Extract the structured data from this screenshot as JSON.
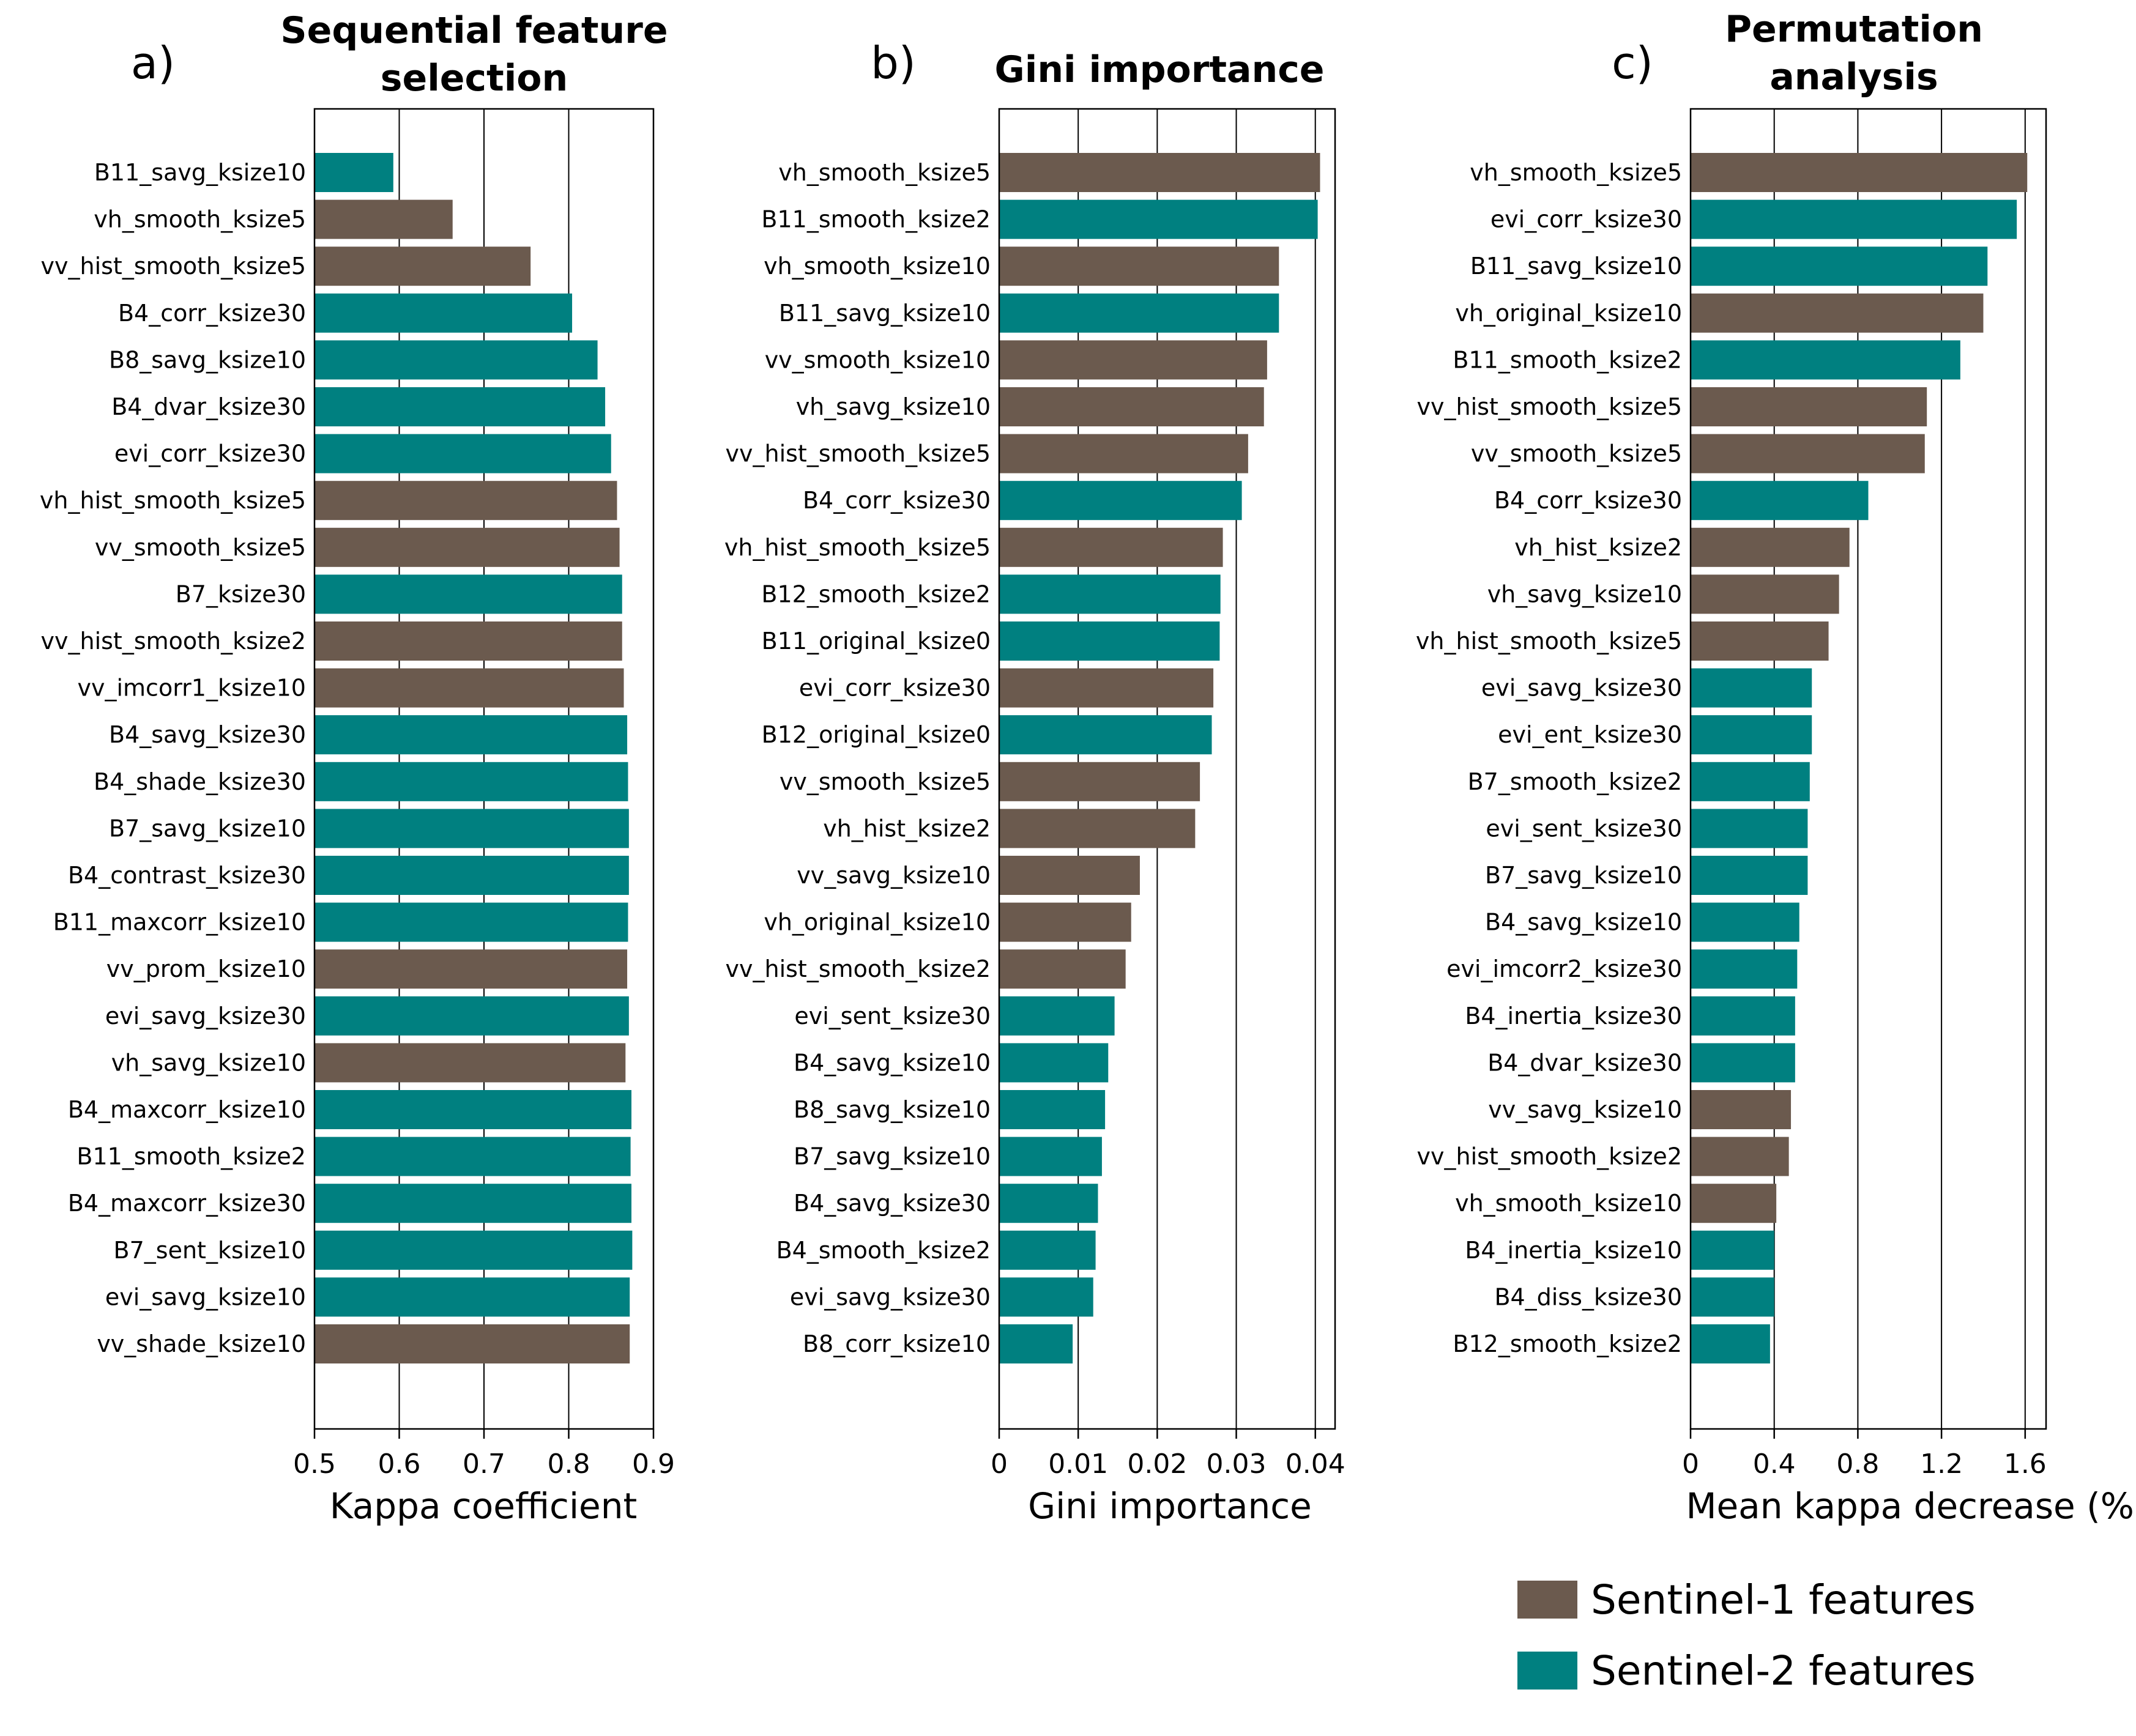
{
  "colors": {
    "sentinel1": "#6b5a4e",
    "sentinel2": "#008080"
  },
  "legend": [
    {
      "label": "Sentinel-1 features",
      "group": "s1"
    },
    {
      "label": "Sentinel-2 features",
      "group": "s2"
    }
  ],
  "chart_data": [
    {
      "type": "bar",
      "orientation": "horizontal",
      "panel_label": "a)",
      "title": [
        "Sequential feature",
        "selection"
      ],
      "xlabel": "Kappa coefficient",
      "xlim": [
        0.5,
        0.9
      ],
      "xticks": [
        0.5,
        0.6,
        0.7,
        0.8,
        0.9
      ],
      "xtick_labels": [
        "0.5",
        "0.6",
        "0.7",
        "0.8",
        "0.9"
      ],
      "grid": true,
      "categories": [
        "B11_savg_ksize10",
        "vh_smooth_ksize5",
        "vv_hist_smooth_ksize5",
        "B4_corr_ksize30",
        "B8_savg_ksize10",
        "B4_dvar_ksize30",
        "evi_corr_ksize30",
        "vh_hist_smooth_ksize5",
        "vv_smooth_ksize5",
        "B7_ksize30",
        "vv_hist_smooth_ksize2",
        "vv_imcorr1_ksize10",
        "B4_savg_ksize30",
        "B4_shade_ksize30",
        "B7_savg_ksize10",
        "B4_contrast_ksize30",
        "B11_maxcorr_ksize10",
        "vv_prom_ksize10",
        "evi_savg_ksize30",
        "vh_savg_ksize10",
        "B4_maxcorr_ksize10",
        "B11_smooth_ksize2",
        "B4_maxcorr_ksize30",
        "B7_sent_ksize10",
        "evi_savg_ksize10",
        "vv_shade_ksize10"
      ],
      "values": [
        0.593,
        0.663,
        0.755,
        0.804,
        0.834,
        0.843,
        0.85,
        0.857,
        0.86,
        0.863,
        0.863,
        0.865,
        0.869,
        0.87,
        0.871,
        0.871,
        0.87,
        0.869,
        0.871,
        0.867,
        0.874,
        0.873,
        0.874,
        0.875,
        0.872,
        0.872
      ],
      "groups": [
        "s2",
        "s1",
        "s1",
        "s2",
        "s2",
        "s2",
        "s2",
        "s1",
        "s1",
        "s2",
        "s1",
        "s1",
        "s2",
        "s2",
        "s2",
        "s2",
        "s2",
        "s1",
        "s2",
        "s1",
        "s2",
        "s2",
        "s2",
        "s2",
        "s2",
        "s1"
      ]
    },
    {
      "type": "bar",
      "orientation": "horizontal",
      "panel_label": "b)",
      "title": [
        "Gini importance"
      ],
      "xlabel": "Gini importance",
      "xlim": [
        0,
        0.0425
      ],
      "xticks": [
        0,
        0.01,
        0.02,
        0.03,
        0.04
      ],
      "xtick_labels": [
        "0",
        "0.01",
        "0.02",
        "0.03",
        "0.04"
      ],
      "grid": true,
      "categories": [
        "vh_smooth_ksize5",
        "B11_smooth_ksize2",
        "vh_smooth_ksize10",
        "B11_savg_ksize10",
        "vv_smooth_ksize10",
        "vh_savg_ksize10",
        "vv_hist_smooth_ksize5",
        "B4_corr_ksize30",
        "vh_hist_smooth_ksize5",
        "B12_smooth_ksize2",
        "B11_original_ksize0",
        "evi_corr_ksize30",
        "B12_original_ksize0",
        "vv_smooth_ksize5",
        "vh_hist_ksize2",
        "vv_savg_ksize10",
        "vh_original_ksize10",
        "vv_hist_smooth_ksize2",
        "evi_sent_ksize30",
        "B4_savg_ksize10",
        "B8_savg_ksize10",
        "B7_savg_ksize10",
        "B4_savg_ksize30",
        "B4_smooth_ksize2",
        "evi_savg_ksize30",
        "B8_corr_ksize10"
      ],
      "values": [
        0.0406,
        0.0403,
        0.0354,
        0.0354,
        0.0339,
        0.0335,
        0.0315,
        0.0307,
        0.0283,
        0.028,
        0.0279,
        0.0271,
        0.0269,
        0.0254,
        0.0248,
        0.0178,
        0.0167,
        0.016,
        0.0146,
        0.0138,
        0.0134,
        0.013,
        0.0125,
        0.0122,
        0.0119,
        0.0093
      ],
      "groups": [
        "s1",
        "s2",
        "s1",
        "s2",
        "s1",
        "s1",
        "s1",
        "s2",
        "s1",
        "s2",
        "s2",
        "s1",
        "s2",
        "s1",
        "s1",
        "s1",
        "s1",
        "s1",
        "s2",
        "s2",
        "s2",
        "s2",
        "s2",
        "s2",
        "s2",
        "s2"
      ]
    },
    {
      "type": "bar",
      "orientation": "horizontal",
      "panel_label": "c)",
      "title": [
        "Permutation",
        "analysis"
      ],
      "xlabel": "Mean kappa decrease (%)",
      "xlim": [
        0,
        1.7
      ],
      "xticks": [
        0,
        0.4,
        0.8,
        1.2,
        1.6
      ],
      "xtick_labels": [
        "0",
        "0.4",
        "0.8",
        "1.2",
        "1.6"
      ],
      "grid": true,
      "categories": [
        "vh_smooth_ksize5",
        "evi_corr_ksize30",
        "B11_savg_ksize10",
        "vh_original_ksize10",
        "B11_smooth_ksize2",
        "vv_hist_smooth_ksize5",
        "vv_smooth_ksize5",
        "B4_corr_ksize30",
        "vh_hist_ksize2",
        "vh_savg_ksize10",
        "vh_hist_smooth_ksize5",
        "evi_savg_ksize30",
        "evi_ent_ksize30",
        "B7_smooth_ksize2",
        "evi_sent_ksize30",
        "B7_savg_ksize10",
        "B4_savg_ksize10",
        "evi_imcorr2_ksize30",
        "B4_inertia_ksize30",
        "B4_dvar_ksize30",
        "vv_savg_ksize10",
        "vv_hist_smooth_ksize2",
        "vh_smooth_ksize10",
        "B4_inertia_ksize10",
        "B4_diss_ksize30",
        "B12_smooth_ksize2"
      ],
      "values": [
        1.61,
        1.56,
        1.42,
        1.4,
        1.29,
        1.13,
        1.12,
        0.85,
        0.76,
        0.71,
        0.66,
        0.58,
        0.58,
        0.57,
        0.56,
        0.56,
        0.52,
        0.51,
        0.5,
        0.5,
        0.48,
        0.47,
        0.41,
        0.4,
        0.4,
        0.38
      ],
      "groups": [
        "s1",
        "s2",
        "s2",
        "s1",
        "s2",
        "s1",
        "s1",
        "s2",
        "s1",
        "s1",
        "s1",
        "s2",
        "s2",
        "s2",
        "s2",
        "s2",
        "s2",
        "s2",
        "s2",
        "s2",
        "s1",
        "s1",
        "s1",
        "s2",
        "s2",
        "s2"
      ]
    }
  ]
}
